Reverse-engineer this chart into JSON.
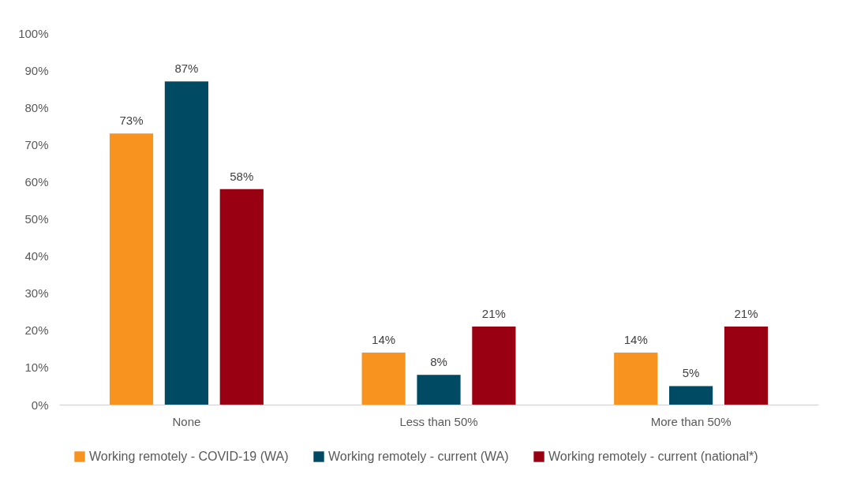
{
  "chart_data": {
    "type": "bar",
    "categories": [
      "None",
      "Less than 50%",
      "More than 50%"
    ],
    "series": [
      {
        "name": "Working remotely - COVID-19 (WA)",
        "color": "#f7931e",
        "values": [
          73,
          14,
          14
        ],
        "value_labels": [
          "73%",
          "14%",
          "14%"
        ]
      },
      {
        "name": "Working remotely - current (WA)",
        "color": "#004b63",
        "values": [
          87,
          8,
          5
        ],
        "value_labels": [
          "87%",
          "8%",
          "5%"
        ]
      },
      {
        "name": "Working remotely - current (national*)",
        "color": "#990012",
        "values": [
          58,
          21,
          21
        ],
        "value_labels": [
          "58%",
          "21%",
          "21%"
        ]
      }
    ],
    "ylim": [
      0,
      100
    ],
    "yticks": [
      {
        "value": 0,
        "label": "0%"
      },
      {
        "value": 10,
        "label": "10%"
      },
      {
        "value": 20,
        "label": "20%"
      },
      {
        "value": 30,
        "label": "30%"
      },
      {
        "value": 40,
        "label": "40%"
      },
      {
        "value": 50,
        "label": "50%"
      },
      {
        "value": 60,
        "label": "60%"
      },
      {
        "value": 70,
        "label": "70%"
      },
      {
        "value": 80,
        "label": "80%"
      },
      {
        "value": 90,
        "label": "90%"
      },
      {
        "value": 100,
        "label": "100%"
      }
    ],
    "legend": "bottom"
  }
}
